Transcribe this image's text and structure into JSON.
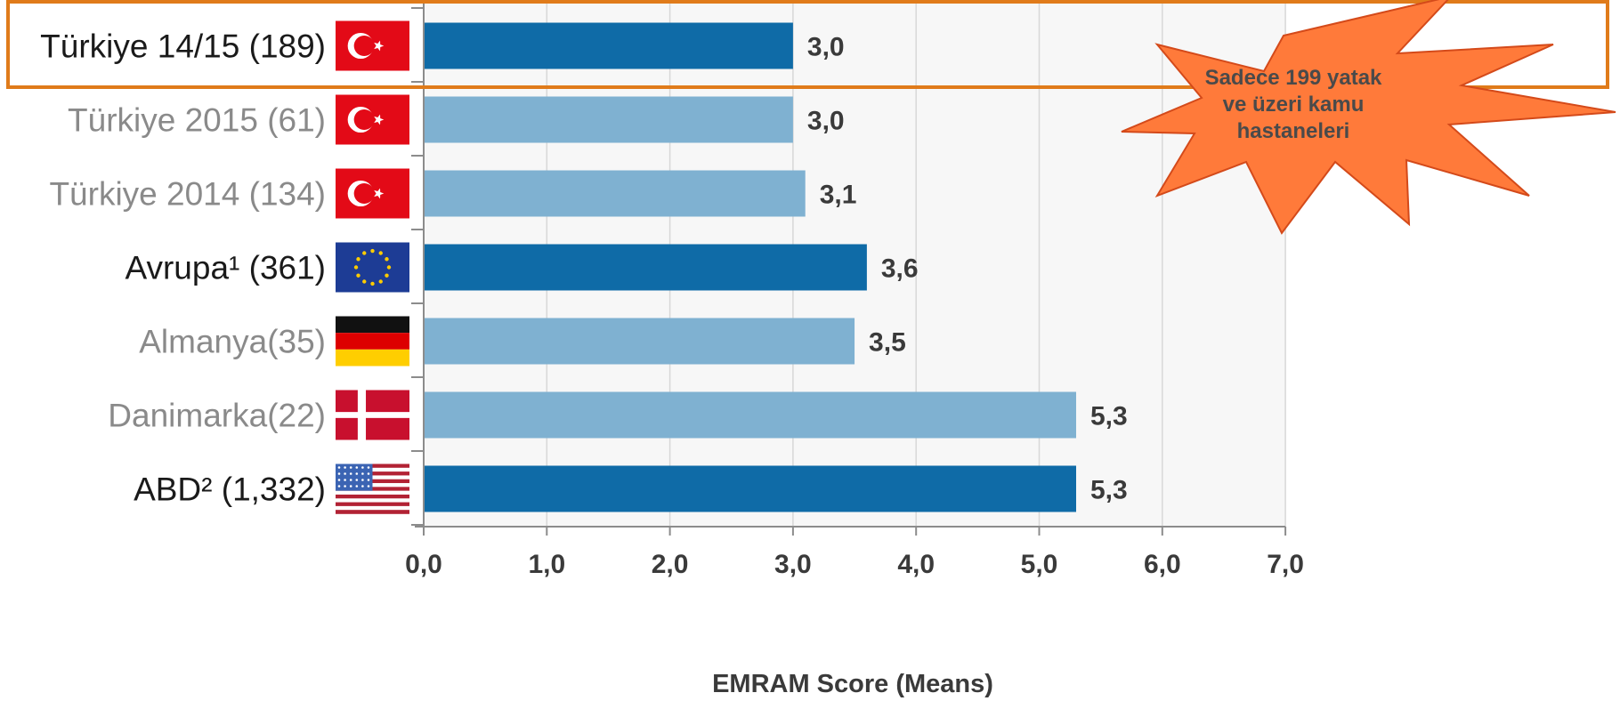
{
  "chart_data": {
    "type": "bar",
    "orientation": "horizontal",
    "categories": [
      "Türkiye 14/15 (189)",
      "Türkiye 2015 (61)",
      "Türkiye 2014 (134)",
      "Avrupa¹ (361)",
      "Almanya(35)",
      "Danimarka(22)",
      "ABD² (1,332)"
    ],
    "values": [
      3.0,
      3.0,
      3.1,
      3.6,
      3.5,
      5.3,
      5.3
    ],
    "value_labels": [
      "3,0",
      "3,0",
      "3,1",
      "3,6",
      "3,5",
      "5,3",
      "5,3"
    ],
    "flags": [
      "turkey-flag",
      "turkey-flag",
      "turkey-flag",
      "eu-flag",
      "germany-flag",
      "denmark-flag",
      "usa-flag"
    ],
    "highlighted": [
      true,
      false,
      false,
      true,
      false,
      false,
      true
    ],
    "xlim": [
      0,
      7
    ],
    "xticks": [
      "0,0",
      "1,0",
      "2,0",
      "3,0",
      "4,0",
      "5,0",
      "6,0",
      "7,0"
    ],
    "xlabel": "EMRAM Score (Means)",
    "grid": true,
    "colors": {
      "bar_highlight": "#0f6ba7",
      "bar_muted": "#7fb1d1",
      "label_highlight": "#1a1a1a",
      "label_muted": "#8a8a8a",
      "highlight_box": "#e07b1a",
      "callout_fill": "#ff7a3a",
      "plot_background": "#f7f7f7"
    }
  },
  "callout": {
    "lines": [
      "Sadece 199 yatak",
      "ve üzeri kamu",
      "hastaneleri"
    ]
  }
}
